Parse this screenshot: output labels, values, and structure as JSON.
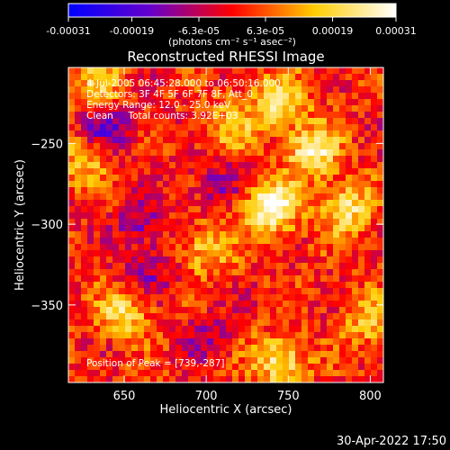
{
  "chart_data": {
    "type": "heatmap",
    "title": "Reconstructed RHESSI Image",
    "xlabel": "Heliocentric X (arcsec)",
    "ylabel": "Heliocentric Y (arcsec)",
    "xlim": [
      616,
      808
    ],
    "ylim": [
      -398,
      -203
    ],
    "x_ticks": [
      650,
      700,
      750,
      800
    ],
    "x_tick_labels": [
      "650",
      "700",
      "750",
      "800"
    ],
    "y_ticks": [
      -350,
      -300,
      -250
    ],
    "y_tick_labels": [
      "−350",
      "−300",
      "−250"
    ],
    "colorbar": {
      "range": [
        -0.00031,
        0.00031
      ],
      "ticks": [
        -0.00031,
        -0.00019,
        -6.3e-05,
        6.3e-05,
        0.00019,
        0.00031
      ],
      "tick_labels": [
        "-0.00031",
        "-0.00019",
        "-6.3e-05",
        "6.3e-05",
        "0.00019",
        "0.00031"
      ],
      "unit_label": "(photons cm⁻² s⁻¹ asec⁻²)",
      "colormap": [
        "#0000ff",
        "#6600cc",
        "#ff0000",
        "#ffcc00",
        "#ffffff"
      ]
    },
    "annotations": [
      "4-Jul-2005 06:45:28.000 to 06:50:16.000",
      "Detectors: 3F 4F 5F 6F 7F 8F, Att_0",
      "Energy Range: 12.0 - 25.0 keV",
      "Clean     Total counts: 3.92E+03"
    ],
    "peak_label": "Position of Peak = [739,-287]",
    "peak": [
      739,
      -287
    ],
    "bright_sources": [
      {
        "x": 740,
        "y": -290,
        "peak": 1.0
      },
      {
        "x": 765,
        "y": -255,
        "peak": 0.8
      },
      {
        "x": 745,
        "y": -225,
        "peak": 0.7
      },
      {
        "x": 785,
        "y": -290,
        "peak": 0.7
      },
      {
        "x": 745,
        "y": -385,
        "peak": 0.7
      },
      {
        "x": 650,
        "y": -355,
        "peak": 0.6
      },
      {
        "x": 700,
        "y": -315,
        "peak": 0.55
      },
      {
        "x": 625,
        "y": -260,
        "peak": 0.5
      },
      {
        "x": 800,
        "y": -360,
        "peak": 0.5
      },
      {
        "x": 635,
        "y": -215,
        "peak": 0.5
      },
      {
        "x": 715,
        "y": -240,
        "peak": 0.45
      }
    ],
    "negative_sources": [
      {
        "x": 640,
        "y": -240,
        "peak": -0.6
      },
      {
        "x": 660,
        "y": -300,
        "peak": -0.4
      },
      {
        "x": 705,
        "y": -275,
        "peak": -0.35
      },
      {
        "x": 665,
        "y": -330,
        "peak": -0.35
      },
      {
        "x": 700,
        "y": -370,
        "peak": -0.3
      }
    ]
  },
  "footer": {
    "timestamp": "30-Apr-2022 17:50"
  }
}
